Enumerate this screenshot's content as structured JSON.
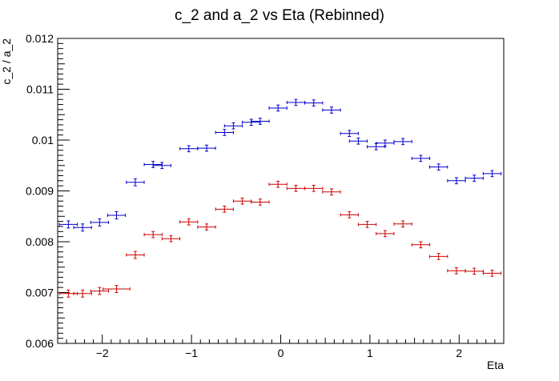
{
  "chart_data": {
    "type": "scatter",
    "title": "c_2 and a_2 vs Eta (Rebinned)",
    "xlabel": "Eta",
    "ylabel": "c_2 / a_2",
    "xlim": [
      -2.5,
      2.5
    ],
    "ylim": [
      0.006,
      0.012
    ],
    "x_major_ticks": [
      -2,
      -1,
      0,
      1,
      2
    ],
    "x_tick_labels": [
      "−2",
      "−1",
      "0",
      "1",
      "2"
    ],
    "y_major_ticks": [
      0.006,
      0.007,
      0.008,
      0.009,
      0.01,
      0.011,
      0.012
    ],
    "y_tick_labels": [
      "0.006",
      "0.007",
      "0.008",
      "0.009",
      "0.01",
      "0.011",
      "0.012"
    ],
    "grid": false,
    "series": [
      {
        "color": "#0000cc",
        "points": [
          {
            "x": -2.38,
            "xerr": 0.1,
            "y": 0.00834,
            "yerr": 7e-05
          },
          {
            "x": -2.22,
            "xerr": 0.1,
            "y": 0.00828,
            "yerr": 7e-05
          },
          {
            "x": -2.03,
            "xerr": 0.1,
            "y": 0.00838,
            "yerr": 7e-05
          },
          {
            "x": -1.84,
            "xerr": 0.1,
            "y": 0.00852,
            "yerr": 7e-05
          },
          {
            "x": -1.63,
            "xerr": 0.1,
            "y": 0.00917,
            "yerr": 7e-05
          },
          {
            "x": -1.43,
            "xerr": 0.1,
            "y": 0.00952,
            "yerr": 6e-05
          },
          {
            "x": -1.33,
            "xerr": 0.1,
            "y": 0.0095,
            "yerr": 6e-05
          },
          {
            "x": -1.03,
            "xerr": 0.1,
            "y": 0.00983,
            "yerr": 6e-05
          },
          {
            "x": -0.83,
            "xerr": 0.1,
            "y": 0.00984,
            "yerr": 6e-05
          },
          {
            "x": -0.63,
            "xerr": 0.1,
            "y": 0.01015,
            "yerr": 6e-05
          },
          {
            "x": -0.53,
            "xerr": 0.1,
            "y": 0.01028,
            "yerr": 6e-05
          },
          {
            "x": -0.33,
            "xerr": 0.1,
            "y": 0.01035,
            "yerr": 6e-05
          },
          {
            "x": -0.23,
            "xerr": 0.1,
            "y": 0.01037,
            "yerr": 6e-05
          },
          {
            "x": -0.03,
            "xerr": 0.1,
            "y": 0.01063,
            "yerr": 6e-05
          },
          {
            "x": 0.17,
            "xerr": 0.1,
            "y": 0.01074,
            "yerr": 6e-05
          },
          {
            "x": 0.37,
            "xerr": 0.1,
            "y": 0.01073,
            "yerr": 6e-05
          },
          {
            "x": 0.57,
            "xerr": 0.1,
            "y": 0.01059,
            "yerr": 6e-05
          },
          {
            "x": 0.77,
            "xerr": 0.1,
            "y": 0.01013,
            "yerr": 6e-05
          },
          {
            "x": 0.87,
            "xerr": 0.1,
            "y": 0.00998,
            "yerr": 6e-05
          },
          {
            "x": 1.07,
            "xerr": 0.1,
            "y": 0.00987,
            "yerr": 6e-05
          },
          {
            "x": 1.17,
            "xerr": 0.1,
            "y": 0.00994,
            "yerr": 6e-05
          },
          {
            "x": 1.37,
            "xerr": 0.1,
            "y": 0.00997,
            "yerr": 6e-05
          },
          {
            "x": 1.57,
            "xerr": 0.1,
            "y": 0.00964,
            "yerr": 6e-05
          },
          {
            "x": 1.77,
            "xerr": 0.1,
            "y": 0.00947,
            "yerr": 6e-05
          },
          {
            "x": 1.97,
            "xerr": 0.1,
            "y": 0.0092,
            "yerr": 6e-05
          },
          {
            "x": 2.17,
            "xerr": 0.1,
            "y": 0.00925,
            "yerr": 6e-05
          },
          {
            "x": 2.37,
            "xerr": 0.1,
            "y": 0.00934,
            "yerr": 6e-05
          }
        ]
      },
      {
        "color": "#cc0000",
        "points": [
          {
            "x": -2.38,
            "xerr": 0.1,
            "y": 0.00698,
            "yerr": 7e-05
          },
          {
            "x": -2.22,
            "xerr": 0.1,
            "y": 0.00698,
            "yerr": 7e-05
          },
          {
            "x": -2.03,
            "xerr": 0.1,
            "y": 0.00703,
            "yerr": 7e-05
          },
          {
            "x": -1.84,
            "xerr": 0.15,
            "y": 0.00707,
            "yerr": 7e-05
          },
          {
            "x": -1.63,
            "xerr": 0.1,
            "y": 0.00774,
            "yerr": 7e-05
          },
          {
            "x": -1.43,
            "xerr": 0.1,
            "y": 0.00814,
            "yerr": 6e-05
          },
          {
            "x": -1.23,
            "xerr": 0.1,
            "y": 0.00806,
            "yerr": 6e-05
          },
          {
            "x": -1.03,
            "xerr": 0.1,
            "y": 0.00839,
            "yerr": 6e-05
          },
          {
            "x": -0.83,
            "xerr": 0.1,
            "y": 0.00829,
            "yerr": 6e-05
          },
          {
            "x": -0.63,
            "xerr": 0.1,
            "y": 0.00864,
            "yerr": 6e-05
          },
          {
            "x": -0.43,
            "xerr": 0.1,
            "y": 0.0088,
            "yerr": 6e-05
          },
          {
            "x": -0.23,
            "xerr": 0.1,
            "y": 0.00878,
            "yerr": 6e-05
          },
          {
            "x": -0.03,
            "xerr": 0.1,
            "y": 0.00913,
            "yerr": 6e-05
          },
          {
            "x": 0.17,
            "xerr": 0.1,
            "y": 0.00905,
            "yerr": 6e-05
          },
          {
            "x": 0.37,
            "xerr": 0.1,
            "y": 0.00905,
            "yerr": 6e-05
          },
          {
            "x": 0.57,
            "xerr": 0.1,
            "y": 0.00898,
            "yerr": 6e-05
          },
          {
            "x": 0.77,
            "xerr": 0.1,
            "y": 0.00853,
            "yerr": 6e-05
          },
          {
            "x": 0.97,
            "xerr": 0.1,
            "y": 0.00834,
            "yerr": 6e-05
          },
          {
            "x": 1.17,
            "xerr": 0.1,
            "y": 0.00816,
            "yerr": 6e-05
          },
          {
            "x": 1.37,
            "xerr": 0.1,
            "y": 0.00835,
            "yerr": 6e-05
          },
          {
            "x": 1.57,
            "xerr": 0.1,
            "y": 0.00794,
            "yerr": 6e-05
          },
          {
            "x": 1.77,
            "xerr": 0.1,
            "y": 0.00771,
            "yerr": 6e-05
          },
          {
            "x": 1.97,
            "xerr": 0.1,
            "y": 0.00743,
            "yerr": 6e-05
          },
          {
            "x": 2.17,
            "xerr": 0.1,
            "y": 0.00742,
            "yerr": 6e-05
          },
          {
            "x": 2.37,
            "xerr": 0.1,
            "y": 0.00738,
            "yerr": 6e-05
          }
        ]
      }
    ]
  }
}
